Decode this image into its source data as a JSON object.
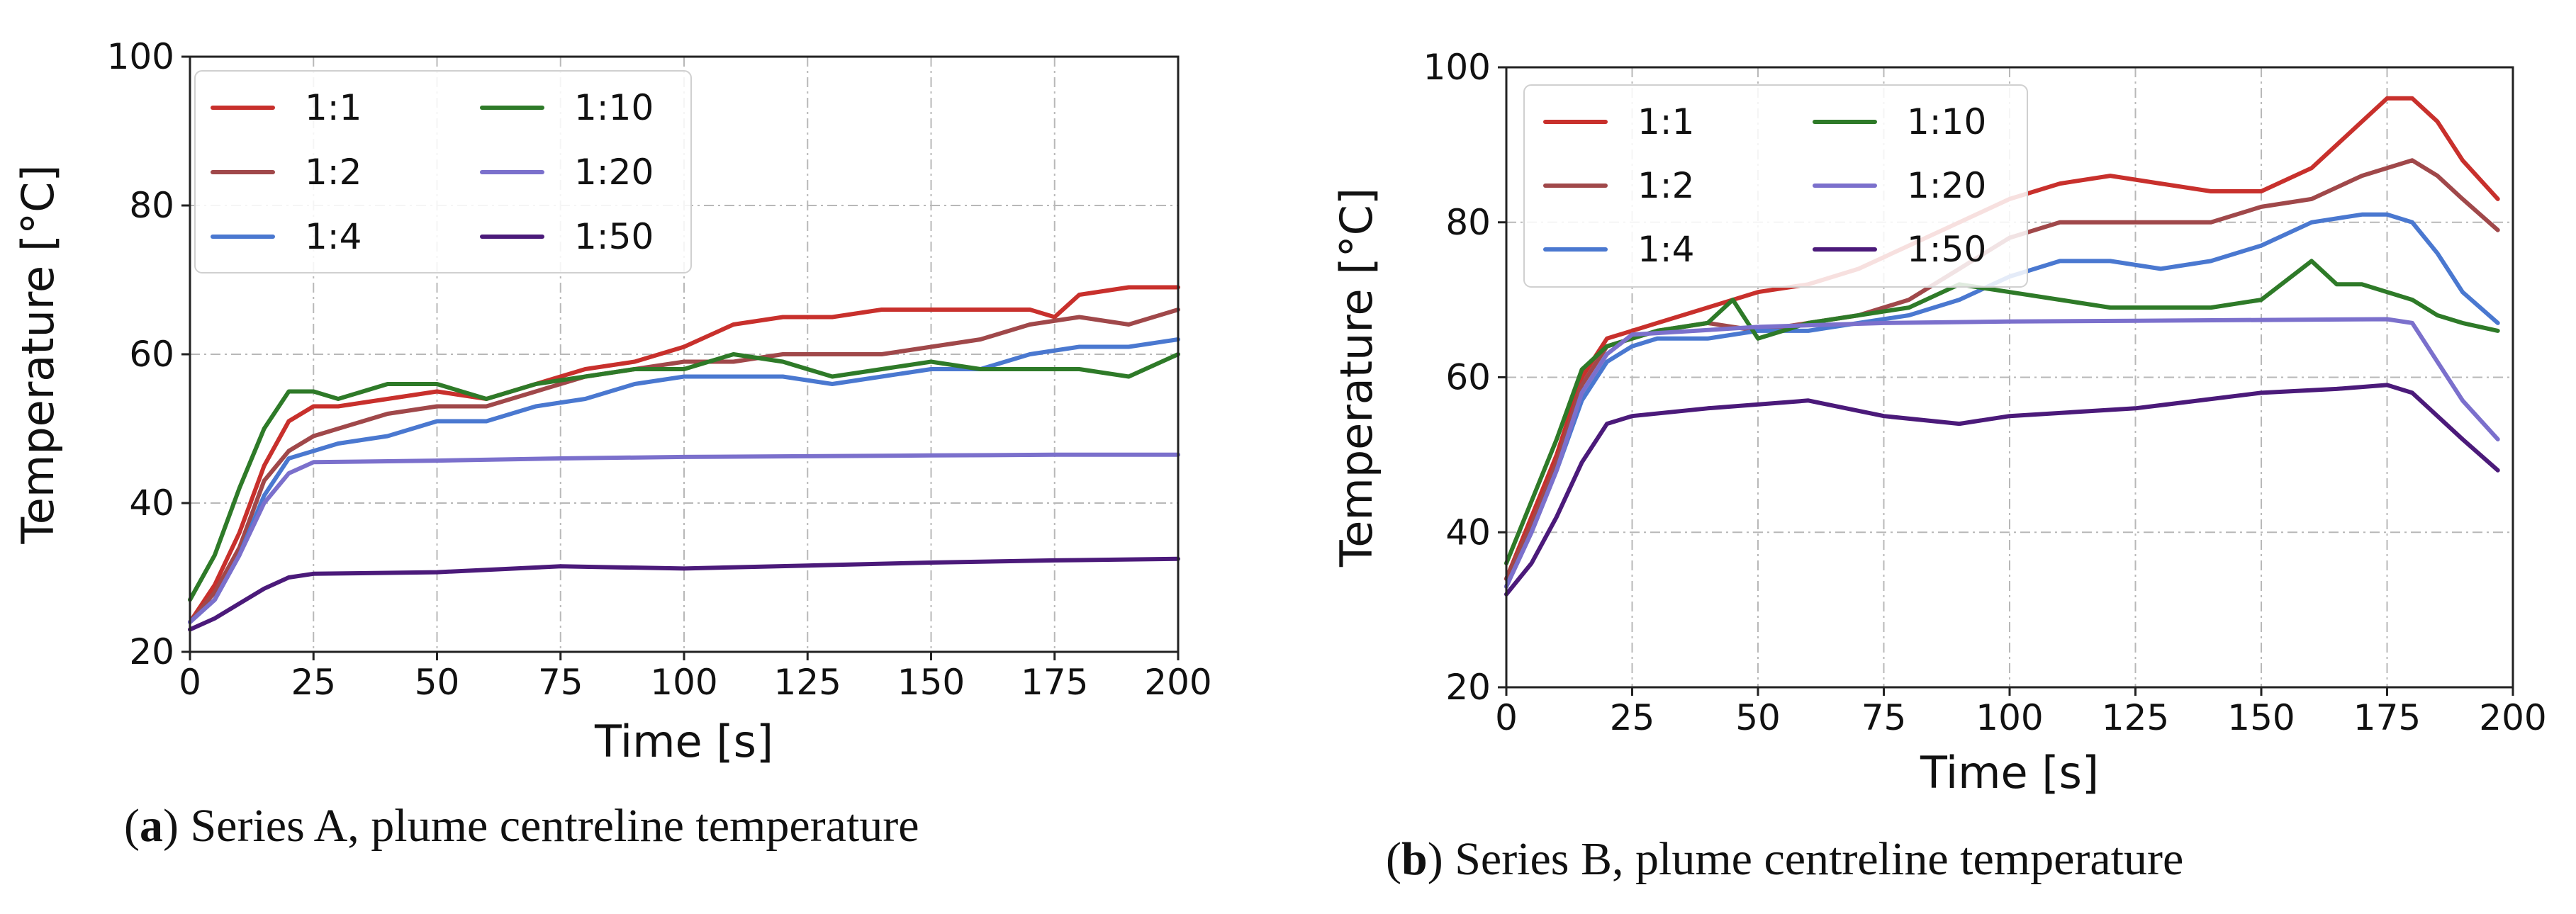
{
  "figure": {
    "captions": [
      {
        "letter": "a",
        "text": "Series A, plume centreline temperature"
      },
      {
        "letter": "b",
        "text": "Series B, plume centreline temperature"
      }
    ]
  },
  "chart_data": [
    {
      "type": "line",
      "title": "",
      "xlabel": "Time [s]",
      "ylabel": "Temperature [°C]",
      "xlim": [
        0,
        200
      ],
      "ylim": [
        20,
        100
      ],
      "xticks": [
        0,
        25,
        50,
        75,
        100,
        125,
        150,
        175,
        200
      ],
      "yticks": [
        20,
        40,
        60,
        80,
        100
      ],
      "grid": true,
      "legend": {
        "position": "top-left",
        "columns": 2
      },
      "series": [
        {
          "name": "1:1",
          "color": "#c8302c",
          "x": [
            0,
            5,
            10,
            15,
            20,
            25,
            30,
            40,
            50,
            60,
            70,
            80,
            90,
            100,
            110,
            120,
            130,
            140,
            150,
            160,
            170,
            175,
            180,
            190,
            200
          ],
          "y": [
            24,
            29,
            36,
            45,
            51,
            53,
            53,
            54,
            55,
            54,
            56,
            58,
            59,
            61,
            64,
            65,
            65,
            66,
            66,
            66,
            66,
            65,
            68,
            69,
            69
          ]
        },
        {
          "name": "1:2",
          "color": "#a0484a",
          "x": [
            0,
            5,
            10,
            15,
            20,
            25,
            30,
            40,
            50,
            60,
            70,
            80,
            90,
            100,
            110,
            120,
            130,
            140,
            150,
            160,
            170,
            180,
            190,
            200
          ],
          "y": [
            24,
            28,
            34,
            43,
            47,
            49,
            50,
            52,
            53,
            53,
            55,
            57,
            58,
            59,
            59,
            60,
            60,
            60,
            61,
            62,
            64,
            65,
            64,
            66
          ]
        },
        {
          "name": "1:4",
          "color": "#4a78d0",
          "x": [
            0,
            5,
            10,
            15,
            20,
            25,
            30,
            40,
            50,
            60,
            70,
            80,
            90,
            100,
            110,
            120,
            130,
            140,
            150,
            160,
            170,
            180,
            190,
            200
          ],
          "y": [
            24,
            27,
            33,
            41,
            46,
            47,
            48,
            49,
            51,
            51,
            53,
            54,
            56,
            57,
            57,
            57,
            56,
            57,
            58,
            58,
            60,
            61,
            61,
            62
          ]
        },
        {
          "name": "1:10",
          "color": "#2e7a28",
          "x": [
            0,
            5,
            10,
            15,
            20,
            25,
            30,
            40,
            50,
            60,
            70,
            80,
            90,
            100,
            110,
            120,
            130,
            140,
            150,
            160,
            170,
            180,
            190,
            200
          ],
          "y": [
            27,
            33,
            42,
            50,
            55,
            55,
            54,
            56,
            56,
            54,
            56,
            57,
            58,
            58,
            60,
            59,
            57,
            58,
            59,
            58,
            58,
            58,
            57,
            60
          ]
        },
        {
          "name": "1:20",
          "color": "#7b70cc",
          "x": [
            0,
            5,
            10,
            15,
            20,
            25,
            50,
            75,
            100,
            125,
            150,
            175,
            200
          ],
          "y": [
            24,
            27,
            33,
            40,
            44,
            45.5,
            45.7,
            46,
            46.2,
            46.3,
            46.4,
            46.5,
            46.5
          ]
        },
        {
          "name": "1:50",
          "color": "#4b1a7a",
          "x": [
            0,
            5,
            10,
            15,
            20,
            25,
            50,
            75,
            100,
            125,
            150,
            175,
            200
          ],
          "y": [
            23,
            24.5,
            26.5,
            28.5,
            30,
            30.5,
            30.7,
            31.5,
            31.2,
            31.6,
            32,
            32.3,
            32.5
          ]
        }
      ]
    },
    {
      "type": "line",
      "title": "",
      "xlabel": "Time [s]",
      "ylabel": "Temperature [°C]",
      "xlim": [
        0,
        200
      ],
      "ylim": [
        20,
        100
      ],
      "xticks": [
        0,
        25,
        50,
        75,
        100,
        125,
        150,
        175,
        200
      ],
      "yticks": [
        20,
        40,
        60,
        80,
        100
      ],
      "grid": true,
      "legend": {
        "position": "top-left",
        "columns": 2
      },
      "series": [
        {
          "name": "1:1",
          "color": "#c8302c",
          "x": [
            0,
            5,
            10,
            15,
            20,
            25,
            30,
            40,
            50,
            60,
            70,
            80,
            90,
            100,
            110,
            120,
            130,
            140,
            150,
            160,
            170,
            175,
            180,
            185,
            190,
            197
          ],
          "y": [
            34,
            42,
            50,
            60,
            65,
            66,
            67,
            69,
            71,
            72,
            74,
            77,
            80,
            83,
            85,
            86,
            85,
            84,
            84,
            87,
            93,
            96,
            96,
            93,
            88,
            83
          ]
        },
        {
          "name": "1:2",
          "color": "#a0484a",
          "x": [
            0,
            5,
            10,
            15,
            20,
            25,
            30,
            40,
            50,
            60,
            70,
            80,
            90,
            100,
            110,
            120,
            130,
            140,
            150,
            160,
            170,
            180,
            185,
            190,
            197
          ],
          "y": [
            34,
            41,
            49,
            59,
            64,
            65,
            66,
            67,
            66,
            67,
            68,
            70,
            74,
            78,
            80,
            80,
            80,
            80,
            82,
            83,
            86,
            88,
            86,
            83,
            79
          ]
        },
        {
          "name": "1:4",
          "color": "#4a78d0",
          "x": [
            0,
            5,
            10,
            15,
            20,
            25,
            30,
            40,
            50,
            60,
            70,
            80,
            90,
            100,
            110,
            120,
            130,
            140,
            150,
            160,
            170,
            175,
            180,
            185,
            190,
            197
          ],
          "y": [
            33,
            40,
            48,
            57,
            62,
            64,
            65,
            65,
            66,
            66,
            67,
            68,
            70,
            73,
            75,
            75,
            74,
            75,
            77,
            80,
            81,
            81,
            80,
            76,
            71,
            67
          ]
        },
        {
          "name": "1:10",
          "color": "#2e7a28",
          "x": [
            0,
            5,
            10,
            15,
            20,
            25,
            30,
            40,
            45,
            50,
            60,
            70,
            80,
            90,
            100,
            110,
            120,
            130,
            140,
            150,
            160,
            165,
            170,
            180,
            185,
            190,
            197
          ],
          "y": [
            36,
            44,
            52,
            61,
            64,
            65,
            66,
            67,
            70,
            65,
            67,
            68,
            69,
            72,
            71,
            70,
            69,
            69,
            69,
            70,
            75,
            72,
            72,
            70,
            68,
            67,
            66
          ]
        },
        {
          "name": "1:20",
          "color": "#7b70cc",
          "x": [
            0,
            5,
            10,
            15,
            20,
            25,
            50,
            75,
            100,
            125,
            150,
            175,
            180,
            185,
            190,
            197
          ],
          "y": [
            33,
            40,
            48,
            58,
            63,
            65.5,
            66.5,
            67,
            67.2,
            67.3,
            67.4,
            67.5,
            67,
            62,
            57,
            52
          ]
        },
        {
          "name": "1:50",
          "color": "#4b1a7a",
          "x": [
            0,
            5,
            10,
            15,
            20,
            25,
            40,
            60,
            75,
            90,
            100,
            125,
            150,
            165,
            175,
            180,
            185,
            190,
            197
          ],
          "y": [
            32,
            36,
            42,
            49,
            54,
            55,
            56,
            57,
            55,
            54,
            55,
            56,
            58,
            58.5,
            59,
            58,
            55,
            52,
            48
          ]
        }
      ]
    }
  ]
}
